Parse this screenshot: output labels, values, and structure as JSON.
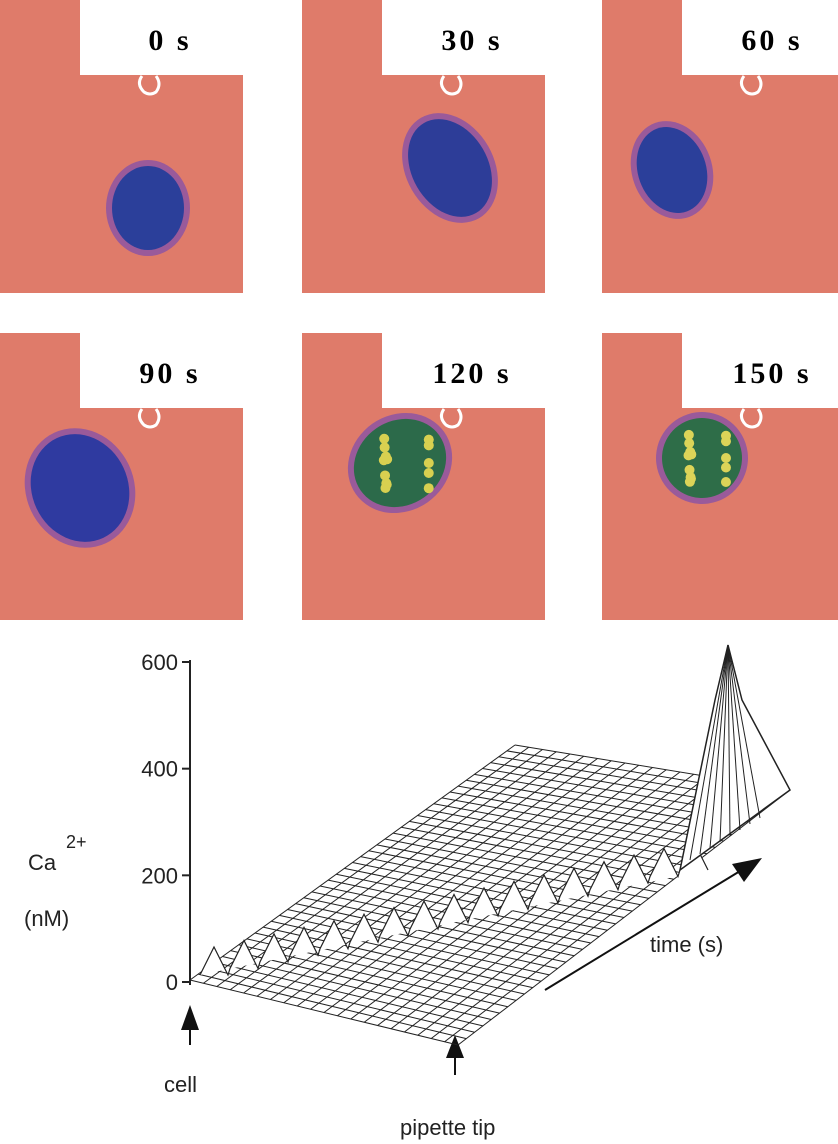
{
  "panels": [
    {
      "label": "0 s"
    },
    {
      "label": "30 s"
    },
    {
      "label": "60 s"
    },
    {
      "label": "90 s"
    },
    {
      "label": "120 s"
    },
    {
      "label": "150 s"
    }
  ],
  "surface_plot": {
    "y_label": "Ca",
    "y_label_sup": "2+",
    "y_unit": "(nM)",
    "yticks": [
      0,
      200,
      400,
      600
    ],
    "time_label": "time (s)",
    "cell_label": "cell",
    "tip_label": "pipette tip"
  }
}
